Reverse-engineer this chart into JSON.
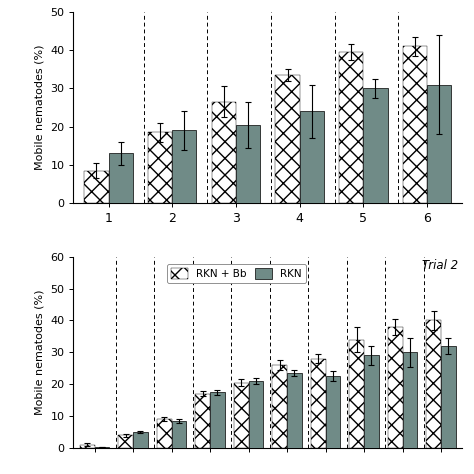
{
  "trial1": {
    "groups": [
      1,
      2,
      3,
      4,
      5,
      6
    ],
    "rkn_bb": [
      8.5,
      18.5,
      26.5,
      33.5,
      39.5,
      41.0
    ],
    "rkn_bb_err": [
      2.0,
      2.5,
      4.0,
      1.5,
      2.0,
      2.5
    ],
    "rkn": [
      13.0,
      19.0,
      20.5,
      24.0,
      30.0,
      31.0
    ],
    "rkn_err": [
      3.0,
      5.0,
      6.0,
      7.0,
      2.5,
      13.0
    ],
    "ylim": [
      0,
      50
    ],
    "yticks": [
      0,
      10,
      20,
      30,
      40,
      50
    ]
  },
  "trial2": {
    "n_groups": 10,
    "rkn_bb": [
      1.0,
      4.0,
      9.0,
      17.0,
      20.5,
      26.0,
      28.0,
      34.0,
      38.0,
      40.0
    ],
    "rkn_bb_err": [
      0.4,
      0.5,
      0.6,
      0.8,
      1.0,
      1.5,
      1.5,
      4.0,
      2.5,
      3.0
    ],
    "rkn": [
      0.3,
      5.0,
      8.5,
      17.5,
      21.0,
      23.5,
      22.5,
      29.0,
      30.0,
      32.0
    ],
    "rkn_err": [
      0.1,
      0.4,
      0.7,
      0.8,
      0.8,
      1.0,
      1.5,
      3.0,
      4.5,
      2.5
    ],
    "ylim": [
      0,
      60
    ],
    "yticks": [
      0,
      10,
      20,
      30,
      40,
      50,
      60
    ]
  },
  "solid_color": "#708b87",
  "bar_width": 0.38,
  "ylabel": "Mobile nematodes (%)",
  "legend_labels": [
    "RKN + Bb",
    "RKN"
  ],
  "trial2_label": "Trial 2",
  "figsize": [
    4.74,
    4.74
  ],
  "dpi": 100
}
